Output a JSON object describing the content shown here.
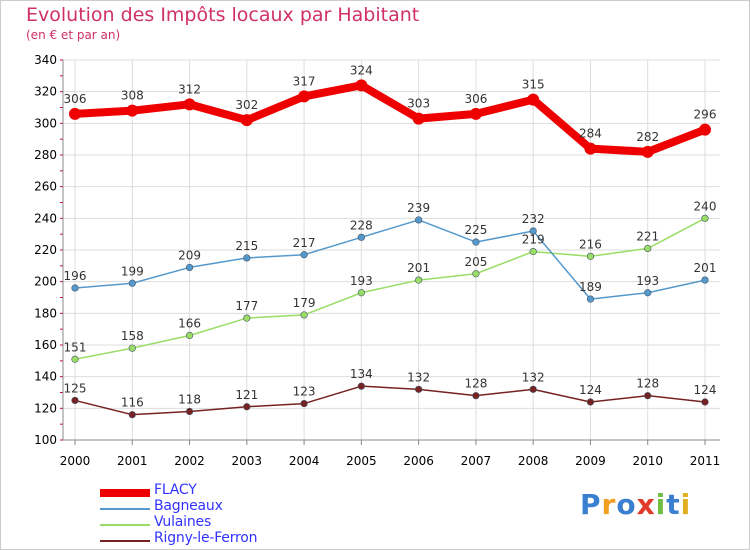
{
  "title": "Evolution des Impôts locaux par Habitant",
  "subtitle": "(en € et par an)",
  "logo": {
    "text": "Proxiti",
    "colors": [
      "#3a7fd0",
      "#f0a020",
      "#3a7fd0",
      "#e03a2a",
      "#70c040",
      "#3a7fd0",
      "#e0b020"
    ]
  },
  "chart_data": {
    "type": "line",
    "x": [
      "2000",
      "2001",
      "2002",
      "2003",
      "2004",
      "2005",
      "2006",
      "2007",
      "2008",
      "2009",
      "2010",
      "2011"
    ],
    "ylim": [
      100,
      340
    ],
    "yticks": [
      100,
      120,
      140,
      160,
      180,
      200,
      220,
      240,
      260,
      280,
      300,
      320,
      340
    ],
    "grid": true,
    "legend_position": "bottom-left",
    "series": [
      {
        "name": "FLACY",
        "color": "#ee0000",
        "values": [
          306,
          308,
          312,
          302,
          317,
          324,
          303,
          306,
          315,
          284,
          282,
          296
        ]
      },
      {
        "name": "Bagneaux",
        "color": "#5599cc",
        "values": [
          196,
          199,
          209,
          215,
          217,
          228,
          239,
          225,
          232,
          189,
          193,
          201
        ]
      },
      {
        "name": "Vulaines",
        "color": "#99dd66",
        "values": [
          151,
          158,
          166,
          177,
          179,
          193,
          201,
          205,
          219,
          216,
          221,
          240
        ]
      },
      {
        "name": "Rigny-le-Ferron",
        "color": "#772222",
        "values": [
          125,
          116,
          118,
          121,
          123,
          134,
          132,
          128,
          132,
          124,
          128,
          124
        ]
      }
    ]
  }
}
